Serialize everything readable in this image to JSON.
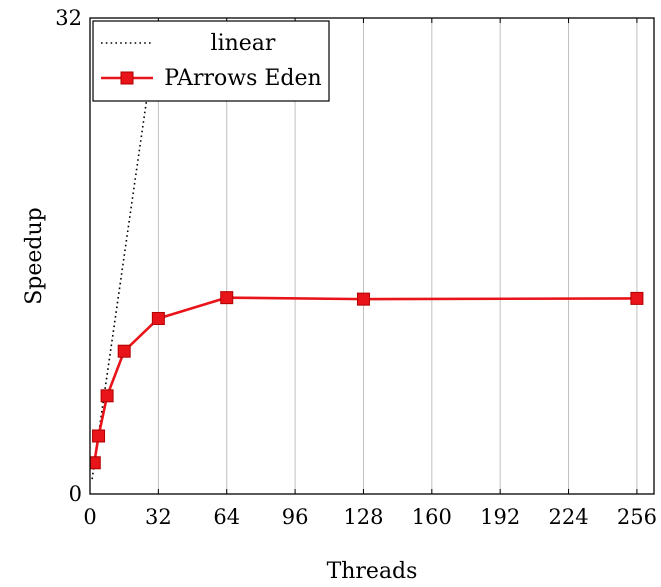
{
  "chart_data": {
    "type": "line",
    "title": "",
    "xlabel": "Threads",
    "ylabel": "Speedup",
    "xlim": [
      0,
      264
    ],
    "ylim": [
      0,
      32
    ],
    "x_ticks": [
      0,
      32,
      64,
      96,
      128,
      160,
      192,
      224,
      256
    ],
    "y_ticks": [
      0,
      32
    ],
    "grid": "vertical",
    "legend_position": "top-left",
    "series": [
      {
        "name": "linear",
        "style": "dotted",
        "color": "#000000",
        "x": [
          1,
          32
        ],
        "y": [
          1,
          32
        ]
      },
      {
        "name": "PArrows Eden",
        "style": "solid",
        "marker": "square",
        "color": "#e8141a",
        "x": [
          2,
          4,
          8,
          16,
          32,
          64,
          128,
          256
        ],
        "y": [
          2.1,
          3.9,
          6.6,
          9.6,
          11.8,
          13.2,
          13.1,
          13.15
        ]
      }
    ]
  }
}
